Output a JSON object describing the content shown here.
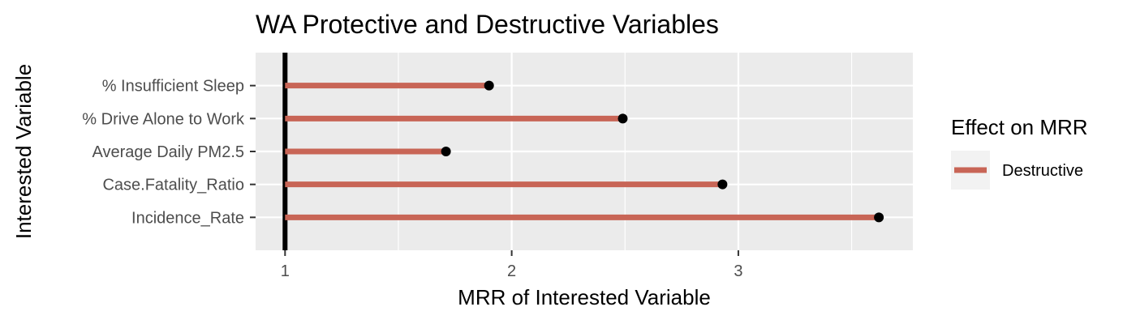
{
  "chart_data": {
    "type": "lollipop",
    "title": "WA Protective and Destructive Variables",
    "xlabel": "MRR of Interested Variable",
    "ylabel": "Interested Variable",
    "xlim": [
      0.87,
      3.77
    ],
    "x_ticks": [
      1,
      2,
      3
    ],
    "baseline": 1,
    "categories": [
      "% Insufficient Sleep",
      "% Drive Alone to Work",
      "Average Daily PM2.5",
      "Case.Fatality_Ratio",
      "Incidence_Rate"
    ],
    "values": [
      1.9,
      2.49,
      1.71,
      2.93,
      3.62
    ],
    "effects": [
      "Destructive",
      "Destructive",
      "Destructive",
      "Destructive",
      "Destructive"
    ],
    "grid": true,
    "legend": {
      "title": "Effect on MRR",
      "position": "right",
      "entries": [
        {
          "label": "Destructive",
          "color": "#c86556"
        }
      ]
    },
    "colors": {
      "Destructive": "#c86556",
      "panel": "#ebebeb",
      "grid": "#ffffff",
      "point": "#000000",
      "baseline": "#000000"
    }
  }
}
